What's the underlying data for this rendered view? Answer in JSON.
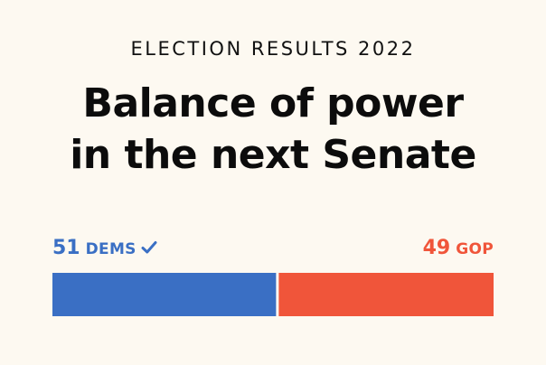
{
  "kicker": "ELECTION RESULTS 2022",
  "headline": {
    "line1": "Balance of power",
    "line2": "in the next Senate"
  },
  "chart_data": {
    "type": "bar",
    "orientation": "horizontal-stacked",
    "total_seats": 100,
    "series": [
      {
        "name": "DEMS",
        "value": 51,
        "label": "51",
        "color": "#3a6fc4",
        "winner": true
      },
      {
        "name": "GOP",
        "value": 49,
        "label": "49",
        "color": "#f0553a",
        "winner": false
      }
    ],
    "icons": {
      "winner_marker": "checkmark-icon"
    },
    "background": "#fdf9f1"
  }
}
